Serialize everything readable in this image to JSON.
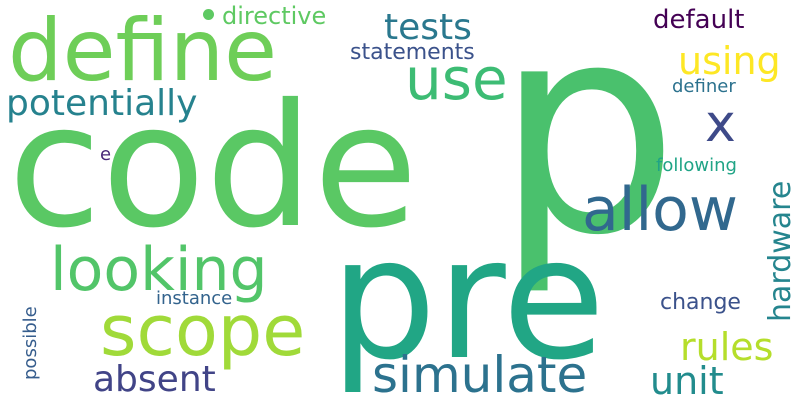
{
  "words": [
    {
      "id": "p",
      "text": "p",
      "color": "#4ac16d"
    },
    {
      "id": "code",
      "text": "code",
      "color": "#5ac864"
    },
    {
      "id": "pre",
      "text": "pre",
      "color": "#21a685"
    },
    {
      "id": "define",
      "text": "define",
      "color": "#6ece58"
    },
    {
      "id": "scope",
      "text": "scope",
      "color": "#a0da39"
    },
    {
      "id": "looking",
      "text": "looking",
      "color": "#52c569"
    },
    {
      "id": "allow",
      "text": "allow",
      "color": "#31688e"
    },
    {
      "id": "use",
      "text": "use",
      "color": "#3dbc74"
    },
    {
      "id": "simulate",
      "text": "simulate",
      "color": "#2c728e"
    },
    {
      "id": "potentially",
      "text": "potentially",
      "color": "#26828e"
    },
    {
      "id": "tests",
      "text": "tests",
      "color": "#2a788e"
    },
    {
      "id": "using",
      "text": "using",
      "color": "#fde725"
    },
    {
      "id": "x",
      "text": "x",
      "color": "#3e4a89"
    },
    {
      "id": "absent",
      "text": "absent",
      "color": "#414487"
    },
    {
      "id": "rules",
      "text": "rules",
      "color": "#b5de2b"
    },
    {
      "id": "unit",
      "text": "unit",
      "color": "#228c8d"
    },
    {
      "id": "hardware",
      "text": "hardware",
      "color": "#25858e"
    },
    {
      "id": "default",
      "text": "default",
      "color": "#440154"
    },
    {
      "id": "directive",
      "text": "directive",
      "color": "#5ec962"
    },
    {
      "id": "statements",
      "text": "statements",
      "color": "#3b528b"
    },
    {
      "id": "change",
      "text": "change",
      "color": "#3b528b"
    },
    {
      "id": "definer",
      "text": "definer",
      "color": "#2c728e"
    },
    {
      "id": "following",
      "text": "following",
      "color": "#20a486"
    },
    {
      "id": "instance",
      "text": "instance",
      "color": "#33638d"
    },
    {
      "id": "possible",
      "text": "possible",
      "color": "#365d8d"
    },
    {
      "id": "e",
      "text": "e",
      "color": "#482677"
    }
  ]
}
